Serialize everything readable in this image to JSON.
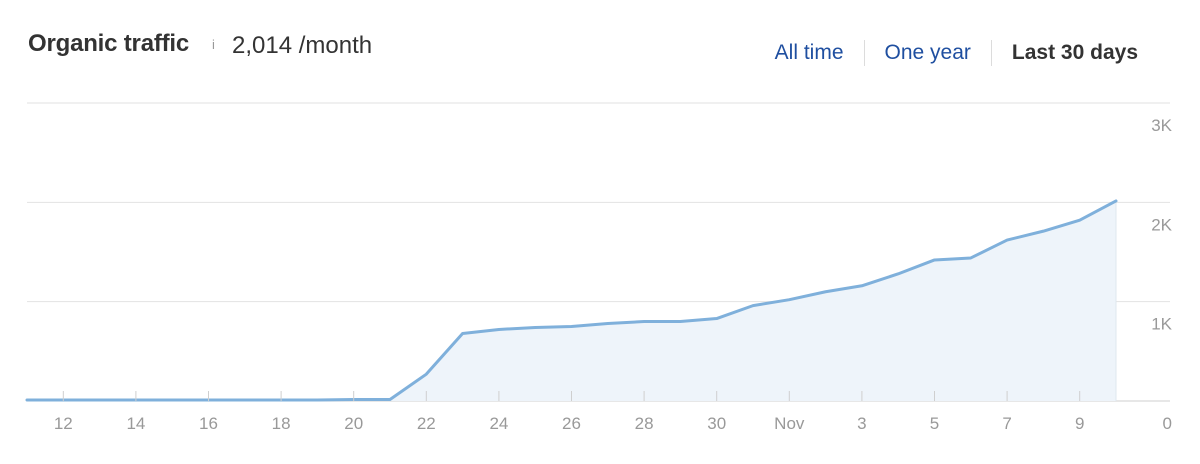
{
  "header": {
    "title": "Organic traffic",
    "info_icon": "i",
    "value": "2,014 /month"
  },
  "ranges": [
    {
      "label": "All time",
      "active": false
    },
    {
      "label": "One year",
      "active": false
    },
    {
      "label": "Last 30 days",
      "active": true
    }
  ],
  "colors": {
    "line": "#7fb0db",
    "area": "#eef4fa",
    "grid": "#e2e2e2",
    "tick_text": "#999999",
    "link": "#1f4fa0",
    "text": "#333333"
  },
  "chart_data": {
    "type": "area",
    "x_labels": [
      "12",
      "14",
      "16",
      "18",
      "20",
      "22",
      "24",
      "26",
      "28",
      "30",
      "Nov",
      "3",
      "5",
      "7",
      "9"
    ],
    "x_label_index": [
      1,
      3,
      5,
      7,
      9,
      11,
      13,
      15,
      17,
      19,
      21,
      23,
      25,
      27,
      29
    ],
    "y_ticks": [
      "0",
      "1K",
      "2K",
      "3K"
    ],
    "y_tick_values": [
      0,
      1000,
      2000,
      3000
    ],
    "ylim": [
      0,
      3000
    ],
    "values": [
      10,
      10,
      10,
      10,
      10,
      10,
      10,
      10,
      10,
      15,
      15,
      270,
      680,
      720,
      740,
      750,
      780,
      800,
      800,
      830,
      960,
      1020,
      1100,
      1160,
      1280,
      1420,
      1440,
      1620,
      1710,
      1820,
      2014
    ],
    "grid": true
  }
}
